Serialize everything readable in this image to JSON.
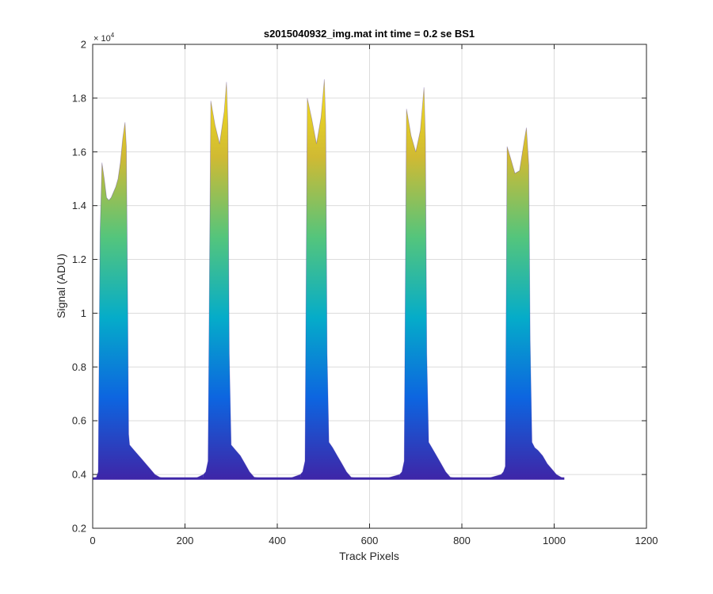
{
  "chart_data": {
    "type": "area",
    "title": "s2015040932_img.mat int time = 0.2 se   BS1",
    "xlabel": "Track Pixels",
    "ylabel": "Signal (ADU)",
    "y_exponent_label": "× 10",
    "y_exponent_power": "4",
    "xlim": [
      0,
      1200
    ],
    "ylim": [
      0.2,
      2
    ],
    "x_ticks": [
      0,
      200,
      400,
      600,
      800,
      1000,
      1200
    ],
    "x_tick_labels": [
      "0",
      "200",
      "400",
      "600",
      "800",
      "1000",
      "1200"
    ],
    "y_ticks": [
      0.2,
      0.4,
      0.6,
      0.8,
      1.0,
      1.2,
      1.4,
      1.6,
      1.8,
      2.0
    ],
    "y_tick_labels": [
      "0.2",
      "0.4",
      "0.6",
      "0.8",
      "1",
      "1.2",
      "1.4",
      "1.6",
      "1.8",
      "2"
    ],
    "grid": true,
    "colormap": [
      "#3e26a8",
      "#0d65e0",
      "#05acc9",
      "#54c57c",
      "#d0ba33",
      "#f9e31c"
    ],
    "baseline": 0.385,
    "series": [
      {
        "x": [
          0,
          8,
          12,
          16,
          20,
          25,
          30,
          35,
          40,
          45,
          50,
          55,
          60,
          65,
          70,
          73,
          76,
          78,
          80,
          85,
          95,
          105,
          115,
          125,
          135,
          145,
          155,
          175,
          200,
          225,
          240
        ],
        "y": [
          0.385,
          0.39,
          0.41,
          1.3,
          1.56,
          1.5,
          1.43,
          1.42,
          1.43,
          1.45,
          1.47,
          1.5,
          1.56,
          1.65,
          1.71,
          1.62,
          1.0,
          0.55,
          0.51,
          0.5,
          0.48,
          0.46,
          0.44,
          0.42,
          0.4,
          0.39,
          0.385,
          0.385,
          0.385,
          0.388,
          0.4
        ]
      },
      {
        "x": [
          240,
          245,
          250,
          256,
          265,
          275,
          285,
          290,
          293,
          296,
          300,
          310,
          320,
          330,
          340,
          350,
          370,
          400,
          430,
          450
        ],
        "y": [
          0.4,
          0.41,
          0.45,
          1.79,
          1.7,
          1.63,
          1.75,
          1.86,
          1.7,
          0.85,
          0.51,
          0.49,
          0.47,
          0.44,
          0.41,
          0.39,
          0.385,
          0.385,
          0.388,
          0.4
        ]
      },
      {
        "x": [
          450,
          455,
          460,
          465,
          475,
          485,
          495,
          502,
          505,
          508,
          512,
          520,
          530,
          540,
          550,
          560,
          575,
          600,
          640,
          665
        ],
        "y": [
          0.4,
          0.41,
          0.45,
          1.8,
          1.72,
          1.63,
          1.73,
          1.87,
          1.7,
          0.85,
          0.52,
          0.5,
          0.47,
          0.44,
          0.41,
          0.39,
          0.385,
          0.385,
          0.388,
          0.4
        ]
      },
      {
        "x": [
          665,
          670,
          675,
          680,
          690,
          700,
          710,
          718,
          721,
          724,
          728,
          735,
          745,
          755,
          765,
          775,
          790,
          820,
          860,
          885
        ],
        "y": [
          0.4,
          0.41,
          0.45,
          1.76,
          1.66,
          1.6,
          1.68,
          1.84,
          1.65,
          0.85,
          0.52,
          0.5,
          0.47,
          0.44,
          0.41,
          0.39,
          0.385,
          0.385,
          0.388,
          0.4
        ]
      },
      {
        "x": [
          885,
          890,
          894,
          898,
          905,
          915,
          925,
          935,
          940,
          945,
          948,
          952,
          958,
          965,
          975,
          985,
          995,
          1005,
          1015,
          1020,
          1022
        ],
        "y": [
          0.4,
          0.41,
          0.43,
          1.62,
          1.58,
          1.52,
          1.53,
          1.64,
          1.69,
          1.55,
          0.9,
          0.52,
          0.5,
          0.49,
          0.47,
          0.44,
          0.42,
          0.4,
          0.39,
          0.385,
          0.385
        ]
      }
    ]
  }
}
